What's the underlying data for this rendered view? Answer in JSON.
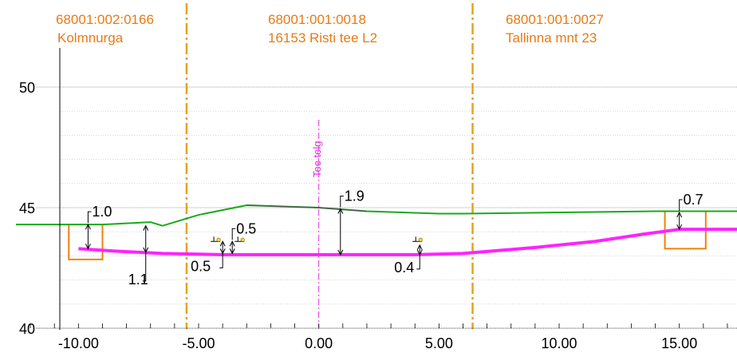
{
  "chart_data": {
    "type": "line",
    "x_ticks": [
      "-10.00",
      "-5.00",
      "0.00",
      "5.00",
      "10.00",
      "15.00"
    ],
    "y_ticks": [
      "40",
      "45",
      "50"
    ],
    "xlim": [
      -12.6,
      17.4
    ],
    "ylim": [
      40,
      50
    ],
    "parcels": [
      {
        "id": "68001:002:0166",
        "name": "Kolmnurga"
      },
      {
        "id": "68001:001:0018",
        "name": "16153 Risti tee L2"
      },
      {
        "id": "68001:001:0027",
        "name": "Tallinna mnt 23"
      }
    ],
    "boundaries_x": [
      -5.5,
      6.4
    ],
    "axis_label": "Tee telg",
    "series": [
      {
        "values": [
          [
            -12.6,
            44.3
          ],
          [
            -10.5,
            44.3
          ],
          [
            -9.0,
            44.3
          ],
          [
            -8.0,
            44.35
          ],
          [
            -7.0,
            44.4
          ],
          [
            -6.5,
            44.25
          ],
          [
            -5.0,
            44.7
          ],
          [
            -3.0,
            45.1
          ],
          [
            0.0,
            45.0
          ],
          [
            2.0,
            44.85
          ],
          [
            5.0,
            44.75
          ],
          [
            6.0,
            44.75
          ],
          [
            10.0,
            44.8
          ],
          [
            14.0,
            44.85
          ],
          [
            17.4,
            44.85
          ]
        ]
      },
      {
        "values": [
          [
            -10.0,
            43.3
          ],
          [
            -8.5,
            43.2
          ],
          [
            -6.5,
            43.1
          ],
          [
            -4.0,
            43.05
          ],
          [
            0.0,
            43.05
          ],
          [
            4.0,
            43.05
          ],
          [
            6.0,
            43.1
          ],
          [
            9.0,
            43.35
          ],
          [
            11.5,
            43.6
          ],
          [
            13.5,
            43.9
          ],
          [
            15.0,
            44.1
          ],
          [
            17.4,
            44.1
          ]
        ]
      }
    ],
    "dimensions": [
      {
        "label": "1.0",
        "x": -9.6,
        "y_top": 44.3,
        "y_bottom": 43.3
      },
      {
        "label": "1.1",
        "x": -7.2,
        "y_top": 44.25,
        "y_bottom": 43.15
      },
      {
        "label": "0.5",
        "x": -3.6,
        "y_top": 43.6,
        "y_bottom": 43.1
      },
      {
        "label": "0.5",
        "x": -4.0,
        "y_top": 43.6,
        "y_bottom": 43.1
      },
      {
        "label": "1.9",
        "x": 0.9,
        "y_top": 44.95,
        "y_bottom": 43.05
      },
      {
        "label": "0.4",
        "x": 4.2,
        "y_top": 43.45,
        "y_bottom": 43.05
      },
      {
        "label": "0.7",
        "x": 15.0,
        "y_top": 44.8,
        "y_bottom": 44.1
      }
    ],
    "ditches": [
      {
        "x1": -10.4,
        "x2": -9.0,
        "top": 44.3,
        "bottom": 42.85
      },
      {
        "x1": 14.4,
        "x2": 16.1,
        "top": 44.85,
        "bottom": 43.3
      }
    ],
    "colors": {
      "ground": "#1aaa1a",
      "design": "#ff22ff",
      "boundary": "#e8a020",
      "ditch": "#f0820a",
      "parcel_text": "#e87a14",
      "centerline": "#e030e0",
      "grid": "#bfbfbf",
      "axis": "#000000"
    }
  }
}
